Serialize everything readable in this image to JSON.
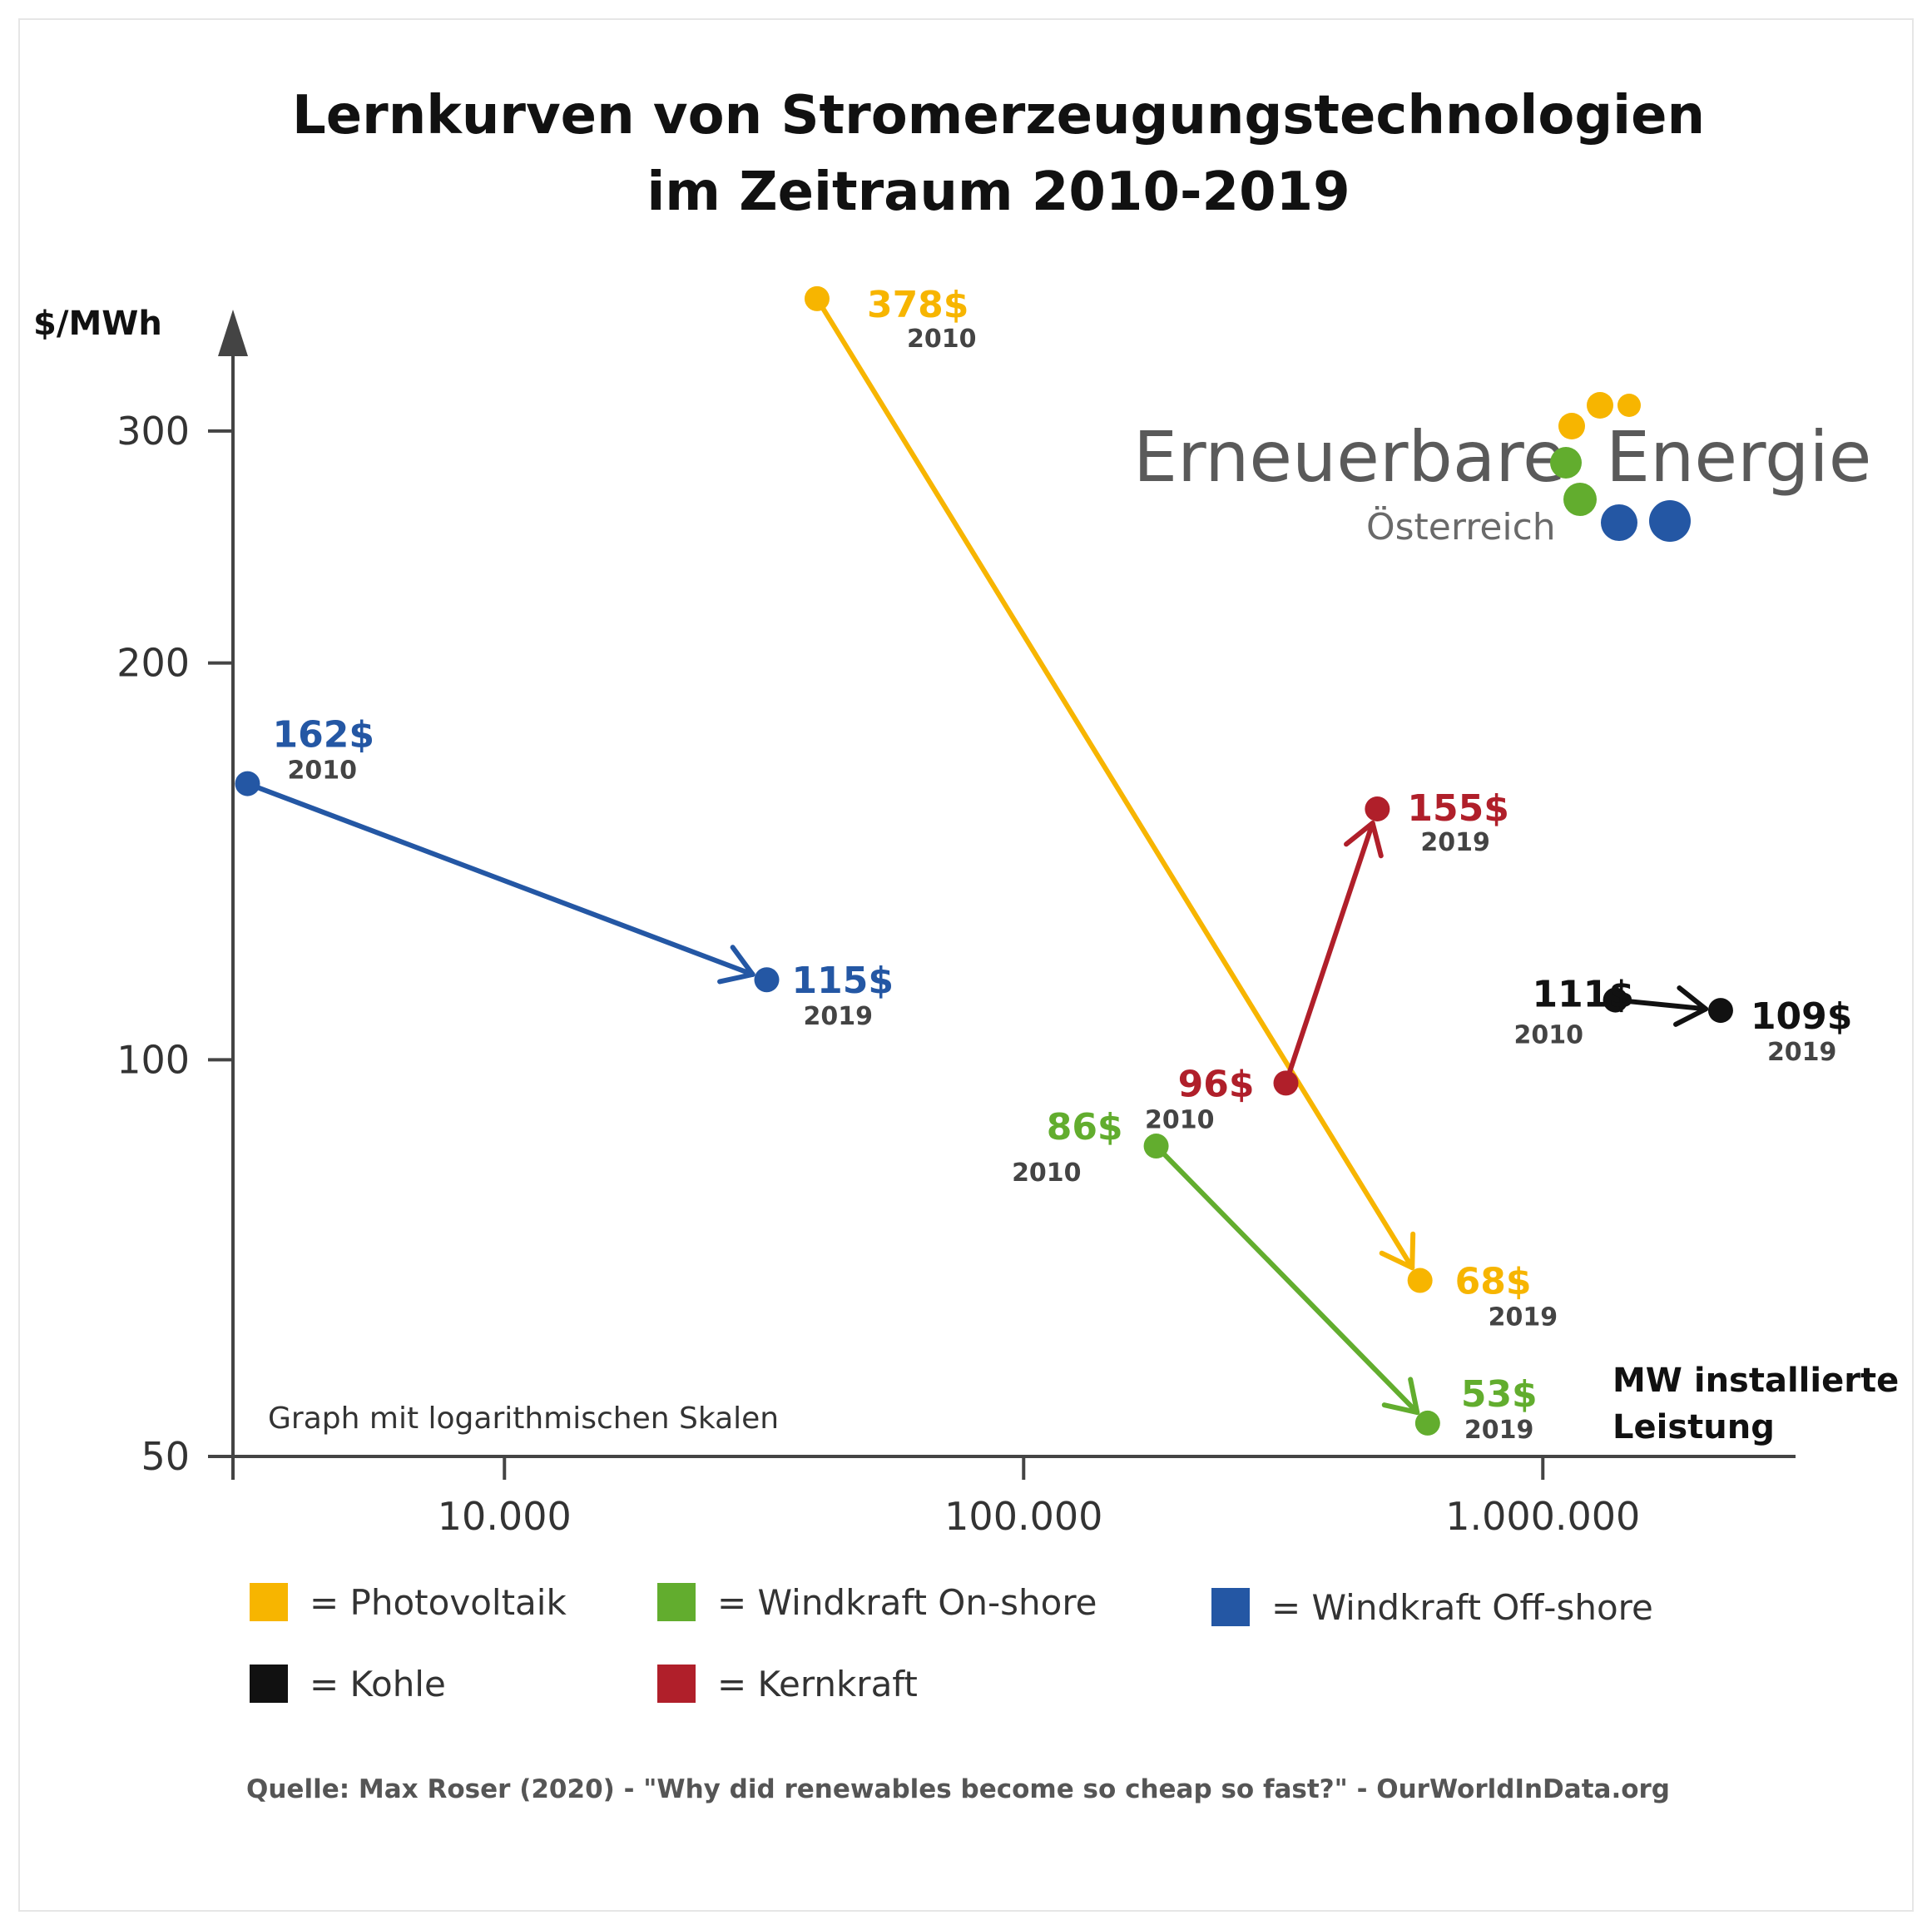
{
  "title_line1": "Lernkurven von Stromerzeugungstechnologien",
  "title_line2": "im Zeitraum 2010-2019",
  "chart_data": {
    "type": "scatter",
    "x_scale": "log",
    "y_scale": "log",
    "xlabel_line1": "MW installierte",
    "xlabel_line2": "Leistung",
    "ylabel": "$/MWh",
    "xlim": [
      3000,
      3000000
    ],
    "ylim": [
      50,
      400
    ],
    "x_ticks": [
      {
        "value": 10000,
        "label": "10.000"
      },
      {
        "value": 100000,
        "label": "100.000"
      },
      {
        "value": 1000000,
        "label": "1.000.000"
      }
    ],
    "y_ticks": [
      {
        "value": 50,
        "label": "50"
      },
      {
        "value": 100,
        "label": "100"
      },
      {
        "value": 200,
        "label": "200"
      },
      {
        "value": 300,
        "label": "300"
      }
    ],
    "note": "Graph mit logarithmischen Skalen",
    "series": [
      {
        "name": "Photovoltaik",
        "color": "#f7b500",
        "points": [
          {
            "x": 40000,
            "y": 378,
            "label": "378$",
            "year": "2010"
          },
          {
            "x": 580000,
            "y": 68,
            "label": "68$",
            "year": "2019"
          }
        ]
      },
      {
        "name": "Windkraft On-shore",
        "color": "#62ad2e",
        "points": [
          {
            "x": 180000,
            "y": 86,
            "label": "86$",
            "year": "2010"
          },
          {
            "x": 600000,
            "y": 53,
            "label": "53$",
            "year": "2019"
          }
        ]
      },
      {
        "name": "Windkraft Off-shore",
        "color": "#2457a4",
        "points": [
          {
            "x": 3200,
            "y": 162,
            "label": "162$",
            "year": "2010"
          },
          {
            "x": 32000,
            "y": 115,
            "label": "115$",
            "year": "2019"
          }
        ]
      },
      {
        "name": "Kohle",
        "color": "#111111",
        "points": [
          {
            "x": 1380000,
            "y": 111,
            "label": "111$",
            "year": "2010"
          },
          {
            "x": 2200000,
            "y": 109,
            "label": "109$",
            "year": "2019"
          }
        ]
      },
      {
        "name": "Kernkraft",
        "color": "#b01f2a",
        "points": [
          {
            "x": 320000,
            "y": 96,
            "label": "96$",
            "year": "2010"
          },
          {
            "x": 480000,
            "y": 155,
            "label": "155$",
            "year": "2019"
          }
        ]
      }
    ]
  },
  "legend": [
    {
      "text": "= Photovoltaik",
      "color": "#f7b500"
    },
    {
      "text": "= Windkraft On-shore",
      "color": "#62ad2e"
    },
    {
      "text": "= Windkraft Off-shore",
      "color": "#2457a4"
    },
    {
      "text": "= Kohle",
      "color": "#111111"
    },
    {
      "text": "= Kernkraft",
      "color": "#b01f2a"
    }
  ],
  "logo": {
    "word1": "Erneuerbare",
    "word2": "Energie",
    "sub": "Österreich",
    "colors": {
      "yellow": "#f7b500",
      "green": "#62ad2e",
      "blue": "#2457a4"
    }
  },
  "source": "Quelle: Max Roser (2020) - \"Why did renewables become so cheap so fast?\" - OurWorldInData.org"
}
